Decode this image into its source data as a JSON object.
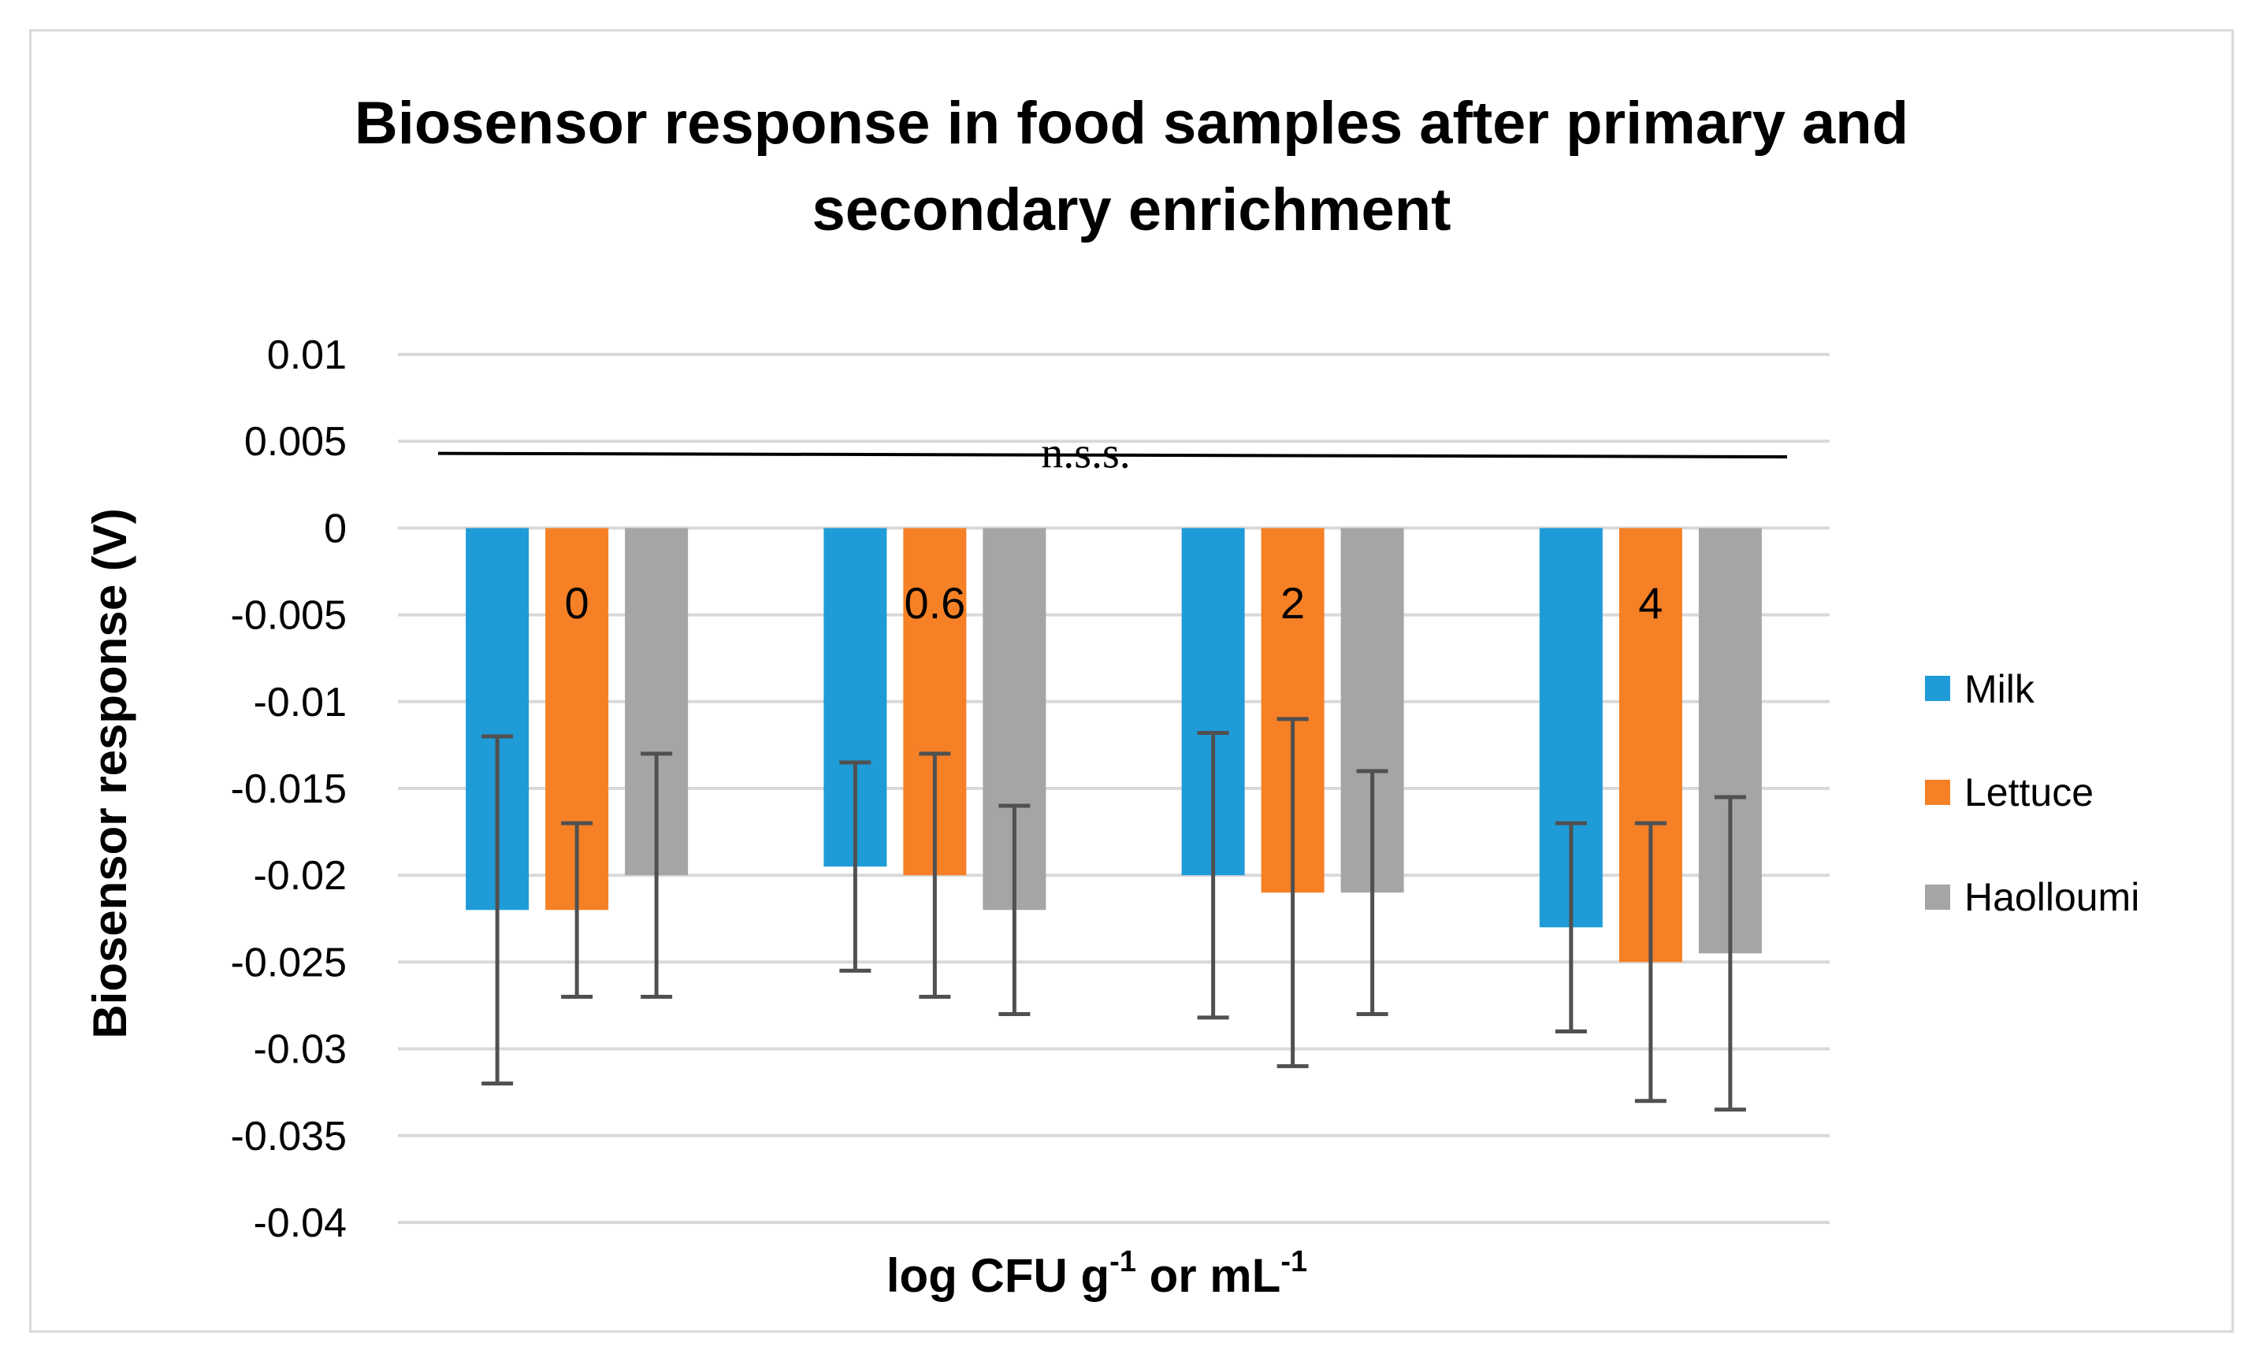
{
  "chart_data": {
    "type": "bar",
    "title": "Biosensor response in food samples after primary and secondary enrichment",
    "title_lines": [
      "Biosensor response in food samples after primary and",
      "secondary enrichment"
    ],
    "xlabel": "log CFU g-1 or mL-1",
    "xlabel_parts": {
      "a": "log CFU g",
      "a_sup": "-1",
      "b": " or mL",
      "b_sup": "-1"
    },
    "ylabel": "Biosensor response (V)",
    "ylim": [
      -0.04,
      0.01
    ],
    "yticks": [
      0.01,
      0.005,
      0,
      -0.005,
      -0.01,
      -0.015,
      -0.02,
      -0.025,
      -0.03,
      -0.035,
      -0.04
    ],
    "ytick_labels": [
      "0.01",
      "0.005",
      "0",
      "-0.005",
      "-0.01",
      "-0.015",
      "-0.02",
      "-0.025",
      "-0.03",
      "-0.035",
      "-0.04"
    ],
    "categories": [
      "0",
      "0.6",
      "2",
      "4"
    ],
    "series": [
      {
        "name": "Milk",
        "color": "#1f9bd7",
        "values": [
          -0.022,
          -0.0195,
          -0.02,
          -0.023
        ],
        "error_low": [
          -0.032,
          -0.0255,
          -0.0282,
          -0.029
        ],
        "error_high": [
          -0.012,
          -0.0135,
          -0.0118,
          -0.017
        ]
      },
      {
        "name": "Lettuce",
        "color": "#f58025",
        "values": [
          -0.022,
          -0.02,
          -0.021,
          -0.025
        ],
        "error_low": [
          -0.027,
          -0.027,
          -0.031,
          -0.033
        ],
        "error_high": [
          -0.017,
          -0.013,
          -0.011,
          -0.017
        ]
      },
      {
        "name": "Haolloumi",
        "color": "#a5a5a5",
        "values": [
          -0.02,
          -0.022,
          -0.021,
          -0.0245
        ],
        "error_low": [
          -0.027,
          -0.028,
          -0.028,
          -0.0335
        ],
        "error_high": [
          -0.013,
          -0.016,
          -0.014,
          -0.0155
        ]
      }
    ],
    "annotation": {
      "text": "n.s.s.",
      "y_start": 0.0043,
      "y_end": 0.0041
    },
    "grid": true,
    "legend": "right"
  }
}
